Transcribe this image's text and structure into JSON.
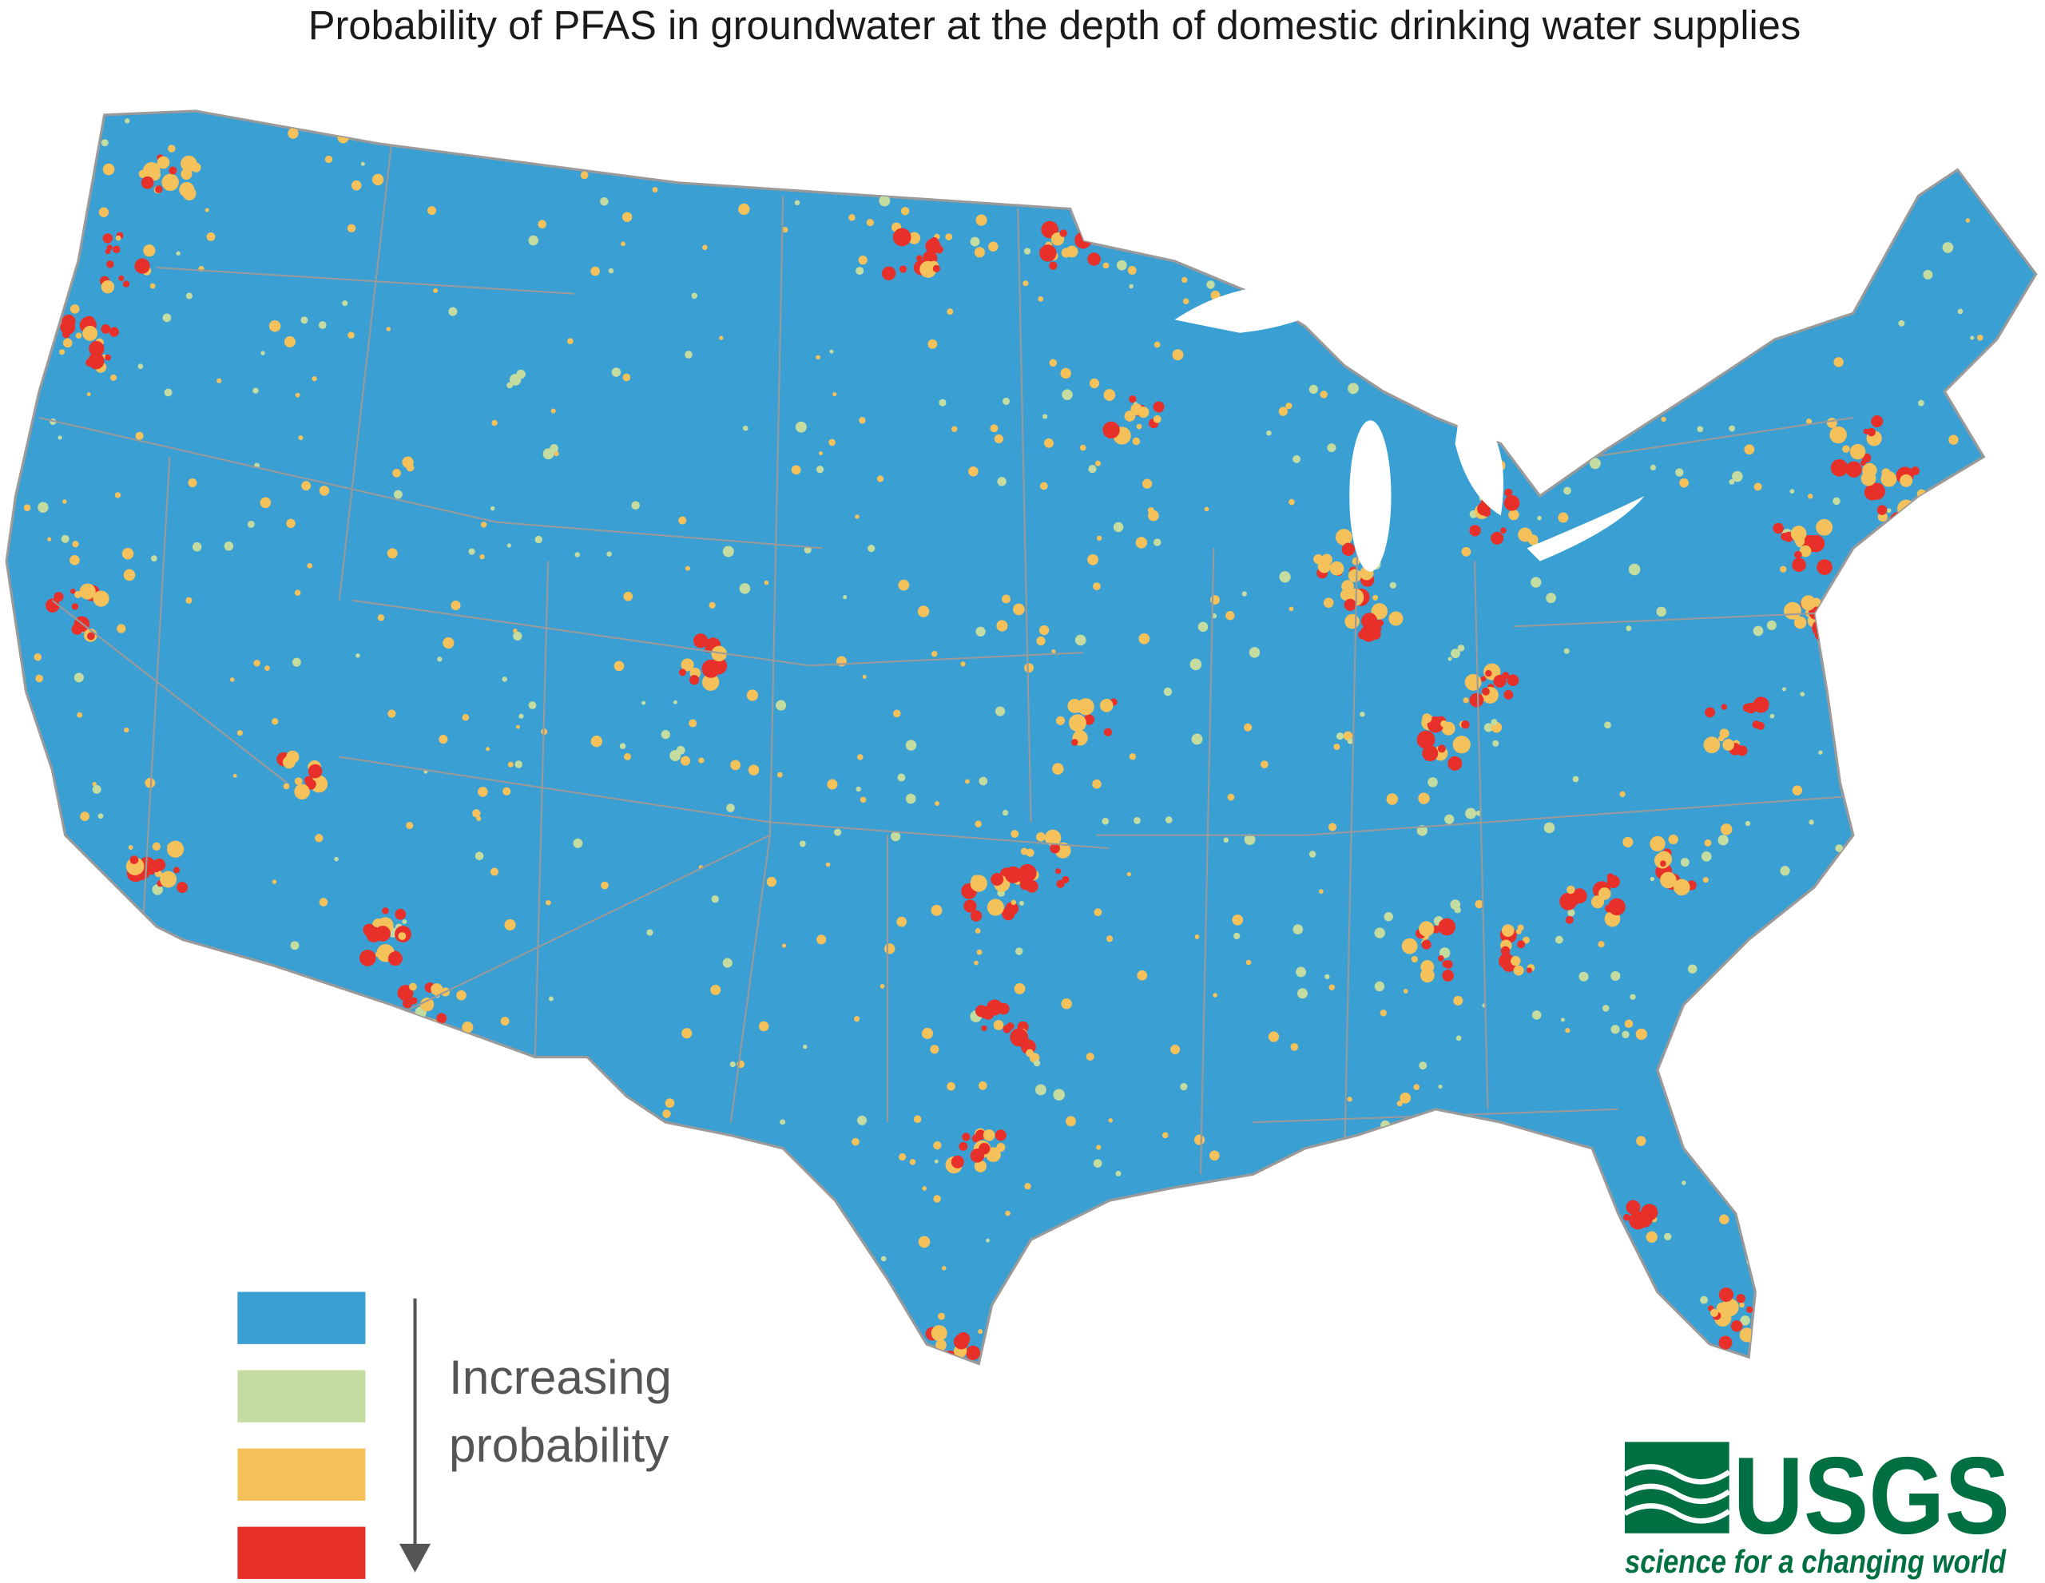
{
  "title": "Probability of PFAS in groundwater at the depth of domestic drinking water supplies",
  "legend": {
    "colors": [
      "#3a9fd3",
      "#c5dca0",
      "#f5c15a",
      "#e8302a"
    ],
    "label_lines": [
      "Increasing",
      "probability"
    ]
  },
  "logo": {
    "name": "USGS",
    "tagline": "science for a changing world",
    "color": "#006f41"
  }
}
